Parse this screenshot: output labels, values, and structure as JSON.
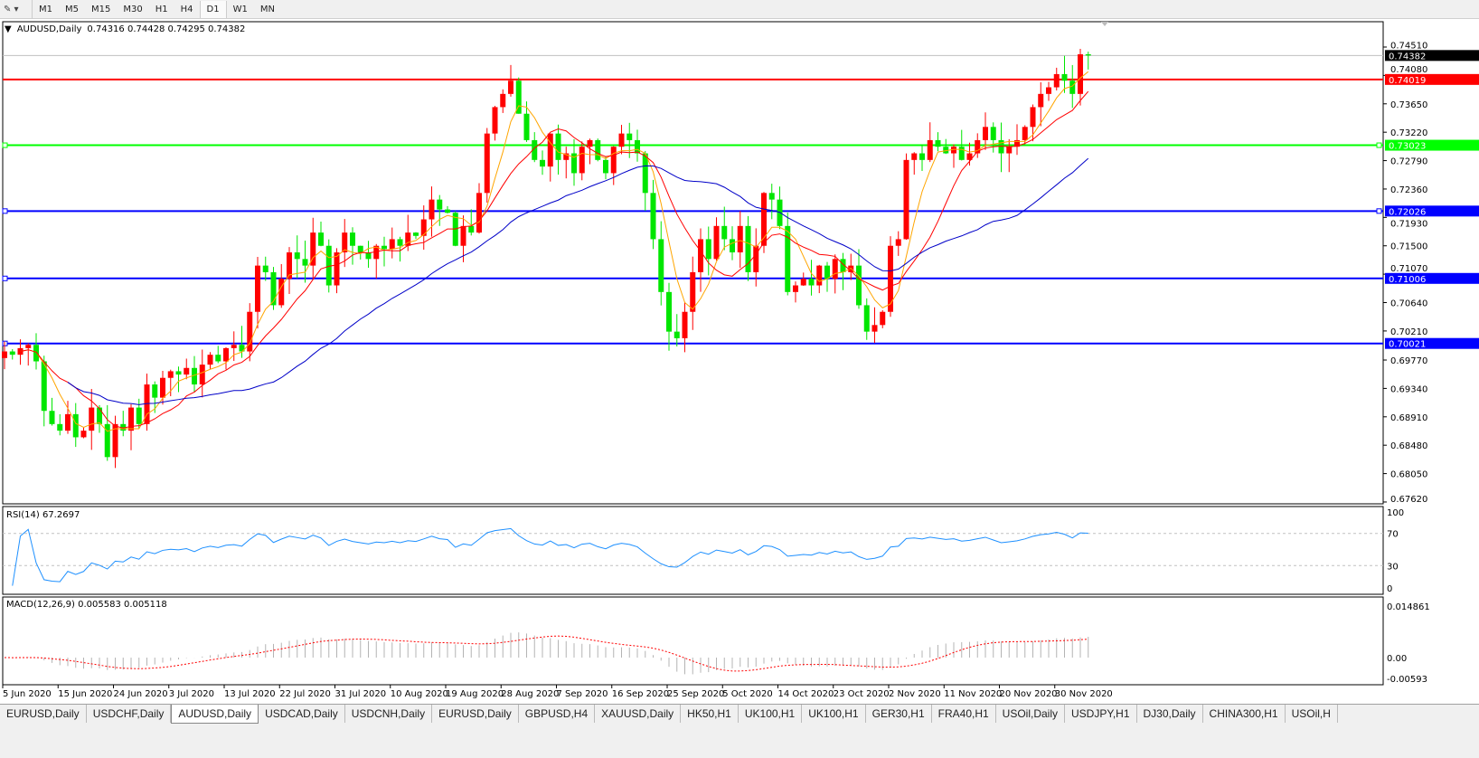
{
  "toolbar": {
    "timeframes": [
      "M1",
      "M5",
      "M15",
      "M30",
      "H1",
      "H4",
      "D1",
      "W1",
      "MN"
    ],
    "active": "D1"
  },
  "chart": {
    "title": "AUDUSD,Daily",
    "ohlc": "0.74316 0.74428 0.74295 0.74382",
    "last_price": "0.74382",
    "price_ticks": [
      "0.74510",
      "0.74080",
      "0.73650",
      "0.73220",
      "0.72790",
      "0.72360",
      "0.71930",
      "0.71500",
      "0.71070",
      "0.70640",
      "0.70210",
      "0.69770",
      "0.69340",
      "0.68910",
      "0.68480",
      "0.68050",
      "0.67620"
    ],
    "hlines": [
      {
        "price": 0.74019,
        "label": "0.74019",
        "color": "#ff0000"
      },
      {
        "price": 0.73023,
        "label": "0.73023",
        "color": "#00ff00"
      },
      {
        "price": 0.72026,
        "label": "0.72026",
        "color": "#0000ff"
      },
      {
        "price": 0.71006,
        "label": "0.71006",
        "color": "#0000ff"
      },
      {
        "price": 0.70021,
        "label": "0.70021",
        "color": "#0000ff"
      }
    ],
    "colors": {
      "bull": "#ff0000",
      "bear": "#00e600",
      "ma_fast": "#ffa500",
      "ma_mid": "#ff0000",
      "ma_slow": "#0000c8"
    },
    "closes": [
      0.699,
      0.6985,
      0.6995,
      0.7,
      0.6975,
      0.69,
      0.688,
      0.687,
      0.6895,
      0.686,
      0.687,
      0.6905,
      0.688,
      0.683,
      0.688,
      0.687,
      0.6905,
      0.688,
      0.694,
      0.692,
      0.695,
      0.696,
      0.6955,
      0.6965,
      0.694,
      0.697,
      0.6985,
      0.6975,
      0.6995,
      0.7,
      0.699,
      0.705,
      0.712,
      0.711,
      0.706,
      0.71,
      0.714,
      0.713,
      0.712,
      0.717,
      0.715,
      0.709,
      0.714,
      0.717,
      0.715,
      0.714,
      0.713,
      0.715,
      0.7145,
      0.716,
      0.715,
      0.717,
      0.7165,
      0.719,
      0.722,
      0.7205,
      0.72,
      0.715,
      0.718,
      0.717,
      0.723,
      0.732,
      0.736,
      0.738,
      0.74,
      0.735,
      0.731,
      0.728,
      0.727,
      0.732,
      0.728,
      0.729,
      0.726,
      0.73,
      0.731,
      0.728,
      0.726,
      0.73,
      0.732,
      0.731,
      0.729,
      0.723,
      0.716,
      0.708,
      0.702,
      0.701,
      0.705,
      0.711,
      0.716,
      0.713,
      0.718,
      0.716,
      0.714,
      0.718,
      0.711,
      0.715,
      0.723,
      0.722,
      0.718,
      0.708,
      0.709,
      0.71,
      0.709,
      0.712,
      0.71,
      0.713,
      0.711,
      0.712,
      0.706,
      0.702,
      0.703,
      0.705,
      0.715,
      0.716,
      0.728,
      0.729,
      0.728,
      0.731,
      0.73,
      0.729,
      0.73,
      0.728,
      0.729,
      0.731,
      0.733,
      0.731,
      0.729,
      0.73,
      0.731,
      0.733,
      0.736,
      0.738,
      0.739,
      0.741,
      0.74,
      0.738,
      0.744,
      0.74382
    ]
  },
  "rsi": {
    "label": "RSI(14) 67.2697",
    "ticks": [
      "100",
      "70",
      "30",
      "0"
    ]
  },
  "macd": {
    "label": "MACD(12,26,9) 0.005583 0.005118",
    "ticks": [
      "0.014861",
      "0.00",
      "-0.00593"
    ]
  },
  "time_axis": [
    "5 Jun 2020",
    "15 Jun 2020",
    "24 Jun 2020",
    "3 Jul 2020",
    "13 Jul 2020",
    "22 Jul 2020",
    "31 Jul 2020",
    "10 Aug 2020",
    "19 Aug 2020",
    "28 Aug 2020",
    "7 Sep 2020",
    "16 Sep 2020",
    "25 Sep 2020",
    "5 Oct 2020",
    "14 Oct 2020",
    "23 Oct 2020",
    "2 Nov 2020",
    "11 Nov 2020",
    "20 Nov 2020",
    "30 Nov 2020"
  ],
  "tabs": [
    "EURUSD,Daily",
    "USDCHF,Daily",
    "AUDUSD,Daily",
    "USDCAD,Daily",
    "USDCNH,Daily",
    "EURUSD,Daily",
    "GBPUSD,H4",
    "XAUUSD,Daily",
    "HK50,H1",
    "UK100,H1",
    "UK100,H1",
    "GER30,H1",
    "FRA40,H1",
    "USOil,Daily",
    "USDJPY,H1",
    "DJ30,Daily",
    "CHINA300,H1",
    "USOil,H"
  ],
  "active_tab": 2
}
